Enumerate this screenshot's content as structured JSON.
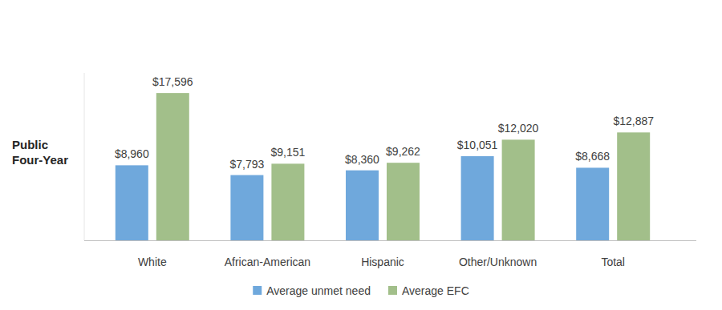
{
  "chart_data": {
    "type": "bar",
    "ylabel": "Public Four-Year",
    "categories": [
      "White",
      "African-American",
      "Hispanic",
      "Other/Unknown",
      "Total"
    ],
    "series": [
      {
        "name": "Average unmet need",
        "color": "#6fa8dc",
        "values": [
          8960,
          7793,
          8360,
          10051,
          8668
        ],
        "value_labels": [
          "$8,960",
          "$7,793",
          "$8,360",
          "$10,051",
          "$8,668"
        ]
      },
      {
        "name": "Average EFC",
        "color": "#a2bf8a",
        "values": [
          17596,
          9151,
          9262,
          12020,
          12887
        ],
        "value_labels": [
          "$17,596",
          "$9,151",
          "$9,262",
          "$12,020",
          "$12,887"
        ]
      }
    ],
    "ylim": [
      0,
      20000
    ],
    "data_labels": true,
    "tick_labels": "x",
    "legend": "bottom",
    "grid": false
  }
}
